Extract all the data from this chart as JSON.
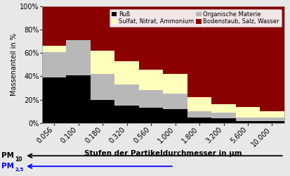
{
  "categories": [
    "0.056",
    "0.100",
    "0.180",
    "0.320",
    "0.560",
    "1.000",
    "1.800",
    "3.200",
    "5.600",
    "10.000"
  ],
  "russ": [
    39,
    41,
    20,
    15,
    13,
    12,
    5,
    4,
    2,
    2
  ],
  "organisch": [
    22,
    30,
    22,
    18,
    15,
    13,
    5,
    5,
    3,
    3
  ],
  "sulfat": [
    5,
    0,
    20,
    20,
    18,
    17,
    12,
    7,
    9,
    5
  ],
  "bodenstaub": [
    34,
    29,
    38,
    47,
    54,
    58,
    78,
    84,
    86,
    90
  ],
  "color_russ": "#000000",
  "color_organisch": "#b8b8b8",
  "color_sulfat": "#ffffbb",
  "color_bodenstaub": "#8b0000",
  "ylabel": "Massenanteil in %",
  "xlabel": "Stufen der Partikeldurchmesser in μm",
  "legend": [
    "Ruß",
    "Organische Materie",
    "Sulfat, Nitrat, Ammonium",
    "Bodenstaub, Salz, Wasser"
  ],
  "bg_color": "#e8e8e8",
  "plot_bg": "#f0f0e8"
}
